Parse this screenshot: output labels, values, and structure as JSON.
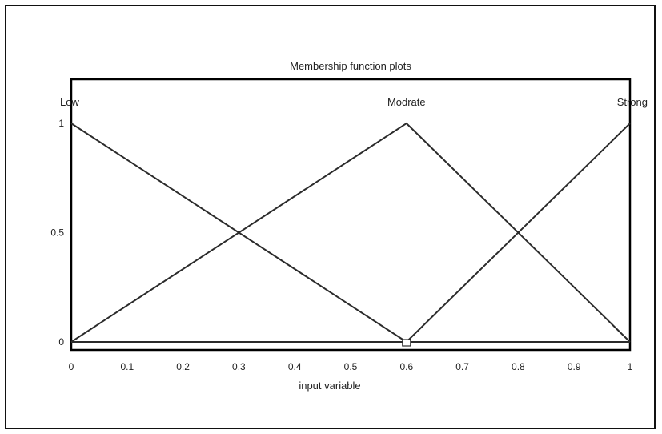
{
  "chart_data": {
    "type": "line",
    "title": "Membership function plots",
    "xlabel": "input variable",
    "ylabel": "",
    "xlim": [
      0,
      1
    ],
    "ylim": [
      0,
      1
    ],
    "x_ticks": [
      "0",
      "0.1",
      "0.2",
      "0.3",
      "0.4",
      "0.5",
      "0.6",
      "0.7",
      "0.8",
      "0.9",
      "1"
    ],
    "y_ticks": [
      "0",
      "0.5",
      "1"
    ],
    "grid": false,
    "series": [
      {
        "name": "Low",
        "x": [
          0,
          0.6
        ],
        "y": [
          1,
          0
        ]
      },
      {
        "name": "Modrate",
        "x": [
          0,
          0.6,
          1
        ],
        "y": [
          0,
          1,
          0
        ]
      },
      {
        "name": "Strong",
        "x": [
          0.6,
          1
        ],
        "y": [
          0,
          1
        ]
      }
    ],
    "baseline": {
      "x": [
        0,
        1
      ],
      "y": [
        0,
        0
      ]
    },
    "selected_marker": {
      "series": "Low",
      "x": 0.6,
      "y": 0
    },
    "colors": {
      "line": "#2b2b2b",
      "axes": "#000000"
    }
  }
}
